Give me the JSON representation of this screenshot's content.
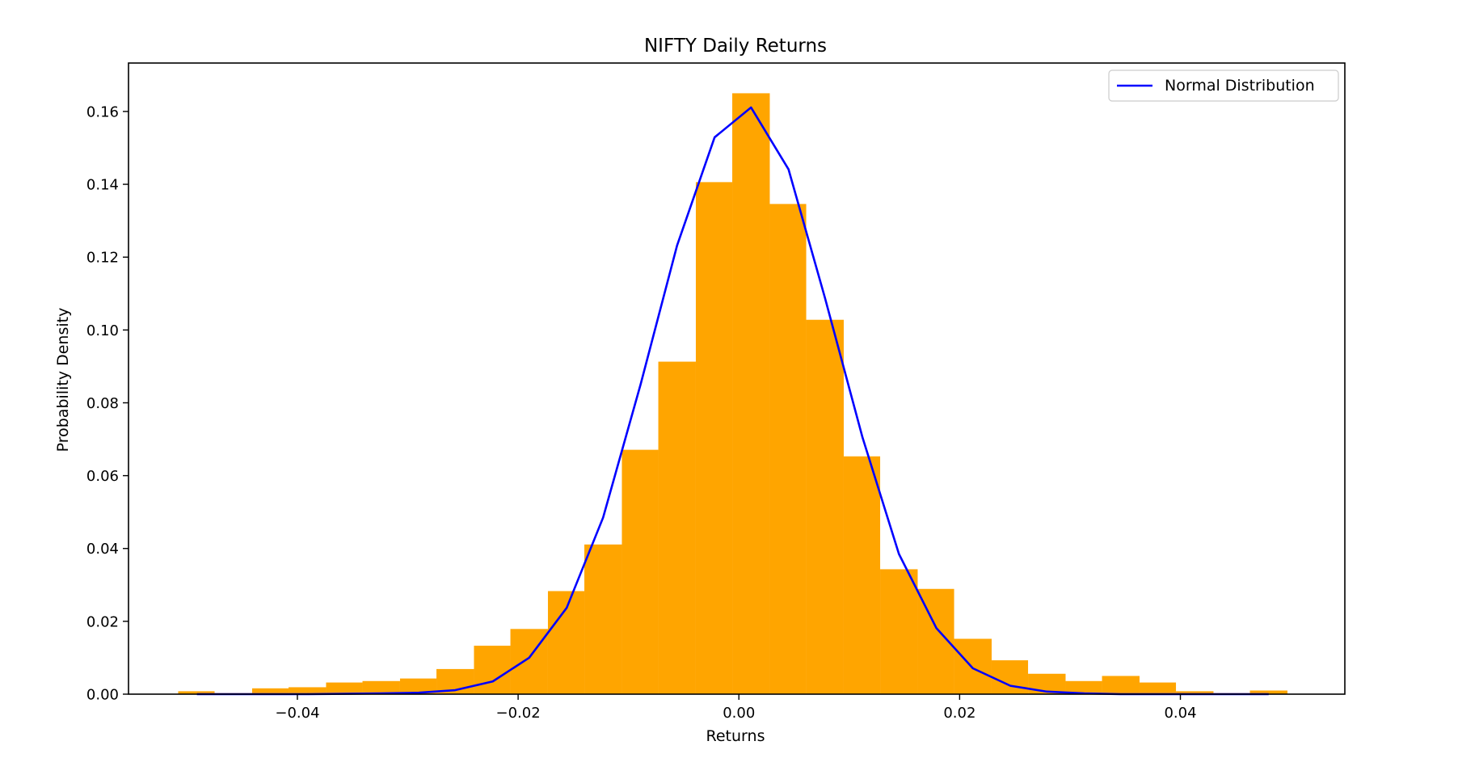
{
  "chart_data": {
    "type": "bar",
    "title": "NIFTY Daily Returns",
    "xlabel": "Returns",
    "ylabel": "Probability Density",
    "xlim": [
      -0.0553,
      0.0549
    ],
    "ylim": [
      0,
      0.1733
    ],
    "grid": false,
    "legend_position": "top-right",
    "x_ticks": [
      -0.04,
      -0.02,
      0.0,
      0.02,
      0.04
    ],
    "x_tick_labels": [
      "−0.04",
      "−0.02",
      "0.00",
      "0.02",
      "0.04"
    ],
    "y_ticks": [
      0.0,
      0.02,
      0.04,
      0.06,
      0.08,
      0.1,
      0.12,
      0.14,
      0.16
    ],
    "y_tick_labels": [
      "0.00",
      "0.02",
      "0.04",
      "0.06",
      "0.08",
      "0.10",
      "0.12",
      "0.14",
      "0.16"
    ],
    "histogram": {
      "color": "#ffa500",
      "bin_edges": [
        -0.0508,
        -0.0475,
        -0.0441,
        -0.0408,
        -0.0374,
        -0.0341,
        -0.0307,
        -0.0274,
        -0.024,
        -0.0207,
        -0.0173,
        -0.014,
        -0.0106,
        -0.0073,
        -0.0039,
        -0.0006,
        0.0028,
        0.0061,
        0.0095,
        0.0128,
        0.0162,
        0.0195,
        0.0229,
        0.0262,
        0.0296,
        0.0329,
        0.0363,
        0.0396,
        0.043,
        0.0463,
        0.0497
      ],
      "values": [
        0.0008,
        0.0003,
        0.0016,
        0.0019,
        0.0032,
        0.0036,
        0.0043,
        0.0069,
        0.0133,
        0.0179,
        0.0283,
        0.0411,
        0.0671,
        0.0913,
        0.1406,
        0.165,
        0.1346,
        0.1028,
        0.0653,
        0.0343,
        0.0289,
        0.0152,
        0.0093,
        0.0056,
        0.0036,
        0.005,
        0.0032,
        0.0008,
        0.0003,
        0.001
      ]
    },
    "series": [
      {
        "name": "Normal Distribution",
        "color": "#0000ff",
        "x": [
          -0.0491,
          -0.0458,
          -0.0424,
          -0.0391,
          -0.0357,
          -0.0324,
          -0.029,
          -0.0257,
          -0.0223,
          -0.019,
          -0.0156,
          -0.0123,
          -0.0089,
          -0.0056,
          -0.0022,
          0.0011,
          0.0045,
          0.0078,
          0.0112,
          0.0145,
          0.0179,
          0.0212,
          0.0246,
          0.0279,
          0.0313,
          0.0346,
          0.038,
          0.0413,
          0.0447,
          0.048
        ],
        "values": [
          0.0,
          0.0,
          0.0,
          0.0,
          0.0001,
          0.0002,
          0.0004,
          0.0011,
          0.0035,
          0.01,
          0.0237,
          0.0485,
          0.0851,
          0.1232,
          0.1529,
          0.1611,
          0.1441,
          0.1088,
          0.0705,
          0.0385,
          0.0181,
          0.0071,
          0.0023,
          0.0007,
          0.0002,
          0.0,
          0.0,
          0.0,
          0.0,
          0.0
        ]
      }
    ]
  }
}
